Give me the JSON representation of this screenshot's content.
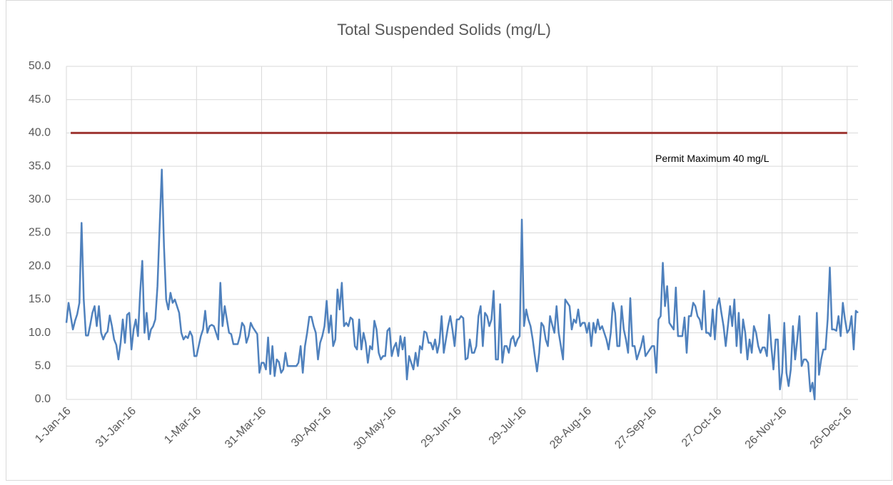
{
  "chart_data": {
    "type": "line",
    "title": "Total Suspended Solids (mg/L)",
    "x": [
      "2016-01-01",
      "2016-01-02",
      "2016-01-03",
      "2016-01-04",
      "2016-01-05",
      "2016-01-06",
      "2016-01-07",
      "2016-01-08",
      "2016-01-09",
      "2016-01-10",
      "2016-01-11",
      "2016-01-12",
      "2016-01-13",
      "2016-01-14",
      "2016-01-15",
      "2016-01-16",
      "2016-01-17",
      "2016-01-18",
      "2016-01-19",
      "2016-01-20",
      "2016-01-21",
      "2016-01-22",
      "2016-01-23",
      "2016-01-24",
      "2016-01-25",
      "2016-01-26",
      "2016-01-27",
      "2016-01-28",
      "2016-01-29",
      "2016-01-30",
      "2016-01-31",
      "2016-02-01",
      "2016-02-02",
      "2016-02-03",
      "2016-02-04",
      "2016-02-05",
      "2016-02-06",
      "2016-02-07",
      "2016-02-08",
      "2016-02-09",
      "2016-02-10",
      "2016-02-11",
      "2016-02-12",
      "2016-02-13",
      "2016-02-14",
      "2016-02-15",
      "2016-02-16",
      "2016-02-17",
      "2016-02-18",
      "2016-02-19",
      "2016-02-20",
      "2016-02-21",
      "2016-02-22",
      "2016-02-23",
      "2016-02-24",
      "2016-02-25",
      "2016-02-26",
      "2016-02-27",
      "2016-02-28",
      "2016-02-29",
      "2016-03-01",
      "2016-03-02",
      "2016-03-03",
      "2016-03-04",
      "2016-03-05",
      "2016-03-06",
      "2016-03-07",
      "2016-03-08",
      "2016-03-09",
      "2016-03-10",
      "2016-03-11",
      "2016-03-12",
      "2016-03-13",
      "2016-03-14",
      "2016-03-15",
      "2016-03-16",
      "2016-03-17",
      "2016-03-18",
      "2016-03-19",
      "2016-03-20",
      "2016-03-21",
      "2016-03-22",
      "2016-03-23",
      "2016-03-24",
      "2016-03-25",
      "2016-03-26",
      "2016-03-27",
      "2016-03-28",
      "2016-03-29",
      "2016-03-30",
      "2016-03-31",
      "2016-04-01",
      "2016-04-02",
      "2016-04-03",
      "2016-04-04",
      "2016-04-05",
      "2016-04-06",
      "2016-04-07",
      "2016-04-08",
      "2016-04-09",
      "2016-04-10",
      "2016-04-11",
      "2016-04-12",
      "2016-04-13",
      "2016-04-14",
      "2016-04-15",
      "2016-04-16",
      "2016-04-17",
      "2016-04-18",
      "2016-04-19",
      "2016-04-20",
      "2016-04-21",
      "2016-04-22",
      "2016-04-23",
      "2016-04-24",
      "2016-04-25",
      "2016-04-26",
      "2016-04-27",
      "2016-04-28",
      "2016-04-29",
      "2016-04-30",
      "2016-05-01",
      "2016-05-02",
      "2016-05-03",
      "2016-05-04",
      "2016-05-05",
      "2016-05-06",
      "2016-05-07",
      "2016-05-08",
      "2016-05-09",
      "2016-05-10",
      "2016-05-11",
      "2016-05-12",
      "2016-05-13",
      "2016-05-14",
      "2016-05-15",
      "2016-05-16",
      "2016-05-17",
      "2016-05-18",
      "2016-05-19",
      "2016-05-20",
      "2016-05-21",
      "2016-05-22",
      "2016-05-23",
      "2016-05-24",
      "2016-05-25",
      "2016-05-26",
      "2016-05-27",
      "2016-05-28",
      "2016-05-29",
      "2016-05-30",
      "2016-05-31",
      "2016-06-01",
      "2016-06-02",
      "2016-06-03",
      "2016-06-04",
      "2016-06-05",
      "2016-06-06",
      "2016-06-07",
      "2016-06-08",
      "2016-06-09",
      "2016-06-10",
      "2016-06-11",
      "2016-06-12",
      "2016-06-13",
      "2016-06-14",
      "2016-06-15",
      "2016-06-16",
      "2016-06-17",
      "2016-06-18",
      "2016-06-19",
      "2016-06-20",
      "2016-06-21",
      "2016-06-22",
      "2016-06-23",
      "2016-06-24",
      "2016-06-25",
      "2016-06-26",
      "2016-06-27",
      "2016-06-28",
      "2016-06-29",
      "2016-06-30",
      "2016-07-01",
      "2016-07-02",
      "2016-07-03",
      "2016-07-04",
      "2016-07-05",
      "2016-07-06",
      "2016-07-07",
      "2016-07-08",
      "2016-07-09",
      "2016-07-10",
      "2016-07-11",
      "2016-07-12",
      "2016-07-13",
      "2016-07-14",
      "2016-07-15",
      "2016-07-16",
      "2016-07-17",
      "2016-07-18",
      "2016-07-19",
      "2016-07-20",
      "2016-07-21",
      "2016-07-22",
      "2016-07-23",
      "2016-07-24",
      "2016-07-25",
      "2016-07-26",
      "2016-07-27",
      "2016-07-28",
      "2016-07-29",
      "2016-07-30",
      "2016-07-31",
      "2016-08-01",
      "2016-08-02",
      "2016-08-03",
      "2016-08-04",
      "2016-08-05",
      "2016-08-06",
      "2016-08-07",
      "2016-08-08",
      "2016-08-09",
      "2016-08-10",
      "2016-08-11",
      "2016-08-12",
      "2016-08-13",
      "2016-08-14",
      "2016-08-15",
      "2016-08-16",
      "2016-08-17",
      "2016-08-18",
      "2016-08-19",
      "2016-08-20",
      "2016-08-21",
      "2016-08-22",
      "2016-08-23",
      "2016-08-24",
      "2016-08-25",
      "2016-08-26",
      "2016-08-27",
      "2016-08-28",
      "2016-08-29",
      "2016-08-30",
      "2016-08-31",
      "2016-09-01",
      "2016-09-02",
      "2016-09-03",
      "2016-09-04",
      "2016-09-05",
      "2016-09-06",
      "2016-09-07",
      "2016-09-08",
      "2016-09-09",
      "2016-09-10",
      "2016-09-11",
      "2016-09-12",
      "2016-09-13",
      "2016-09-14",
      "2016-09-15",
      "2016-09-16",
      "2016-09-17",
      "2016-09-18",
      "2016-09-19",
      "2016-09-20",
      "2016-09-21",
      "2016-09-22",
      "2016-09-23",
      "2016-09-24",
      "2016-09-25",
      "2016-09-26",
      "2016-09-27",
      "2016-09-28",
      "2016-09-29",
      "2016-09-30",
      "2016-10-01",
      "2016-10-02",
      "2016-10-03",
      "2016-10-04",
      "2016-10-05",
      "2016-10-06",
      "2016-10-07",
      "2016-10-08",
      "2016-10-09",
      "2016-10-10",
      "2016-10-11",
      "2016-10-12",
      "2016-10-13",
      "2016-10-14",
      "2016-10-15",
      "2016-10-16",
      "2016-10-17",
      "2016-10-18",
      "2016-10-19",
      "2016-10-20",
      "2016-10-21",
      "2016-10-22",
      "2016-10-23",
      "2016-10-24",
      "2016-10-25",
      "2016-10-26",
      "2016-10-27",
      "2016-10-28",
      "2016-10-29",
      "2016-10-30",
      "2016-10-31",
      "2016-11-01",
      "2016-11-02",
      "2016-11-03",
      "2016-11-04",
      "2016-11-05",
      "2016-11-06",
      "2016-11-07",
      "2016-11-08",
      "2016-11-09",
      "2016-11-10",
      "2016-11-11",
      "2016-11-12",
      "2016-11-13",
      "2016-11-14",
      "2016-11-15",
      "2016-11-16",
      "2016-11-17",
      "2016-11-18",
      "2016-11-19",
      "2016-11-20",
      "2016-11-21",
      "2016-11-22",
      "2016-11-23",
      "2016-11-24",
      "2016-11-25",
      "2016-11-26",
      "2016-11-27",
      "2016-11-28",
      "2016-11-29",
      "2016-11-30",
      "2016-12-01",
      "2016-12-02",
      "2016-12-03",
      "2016-12-04",
      "2016-12-05",
      "2016-12-06",
      "2016-12-07",
      "2016-12-08",
      "2016-12-09",
      "2016-12-10",
      "2016-12-11",
      "2016-12-12",
      "2016-12-13",
      "2016-12-14",
      "2016-12-15",
      "2016-12-16",
      "2016-12-17",
      "2016-12-18",
      "2016-12-19",
      "2016-12-20",
      "2016-12-21",
      "2016-12-22",
      "2016-12-23",
      "2016-12-24",
      "2016-12-25",
      "2016-12-26",
      "2016-12-27",
      "2016-12-28",
      "2016-12-29",
      "2016-12-30",
      "2016-12-31"
    ],
    "series": [
      {
        "color": "#4f81bd",
        "values": [
          11.5,
          14.5,
          12.5,
          10.5,
          11.8,
          12.8,
          14.5,
          26.5,
          15,
          9.6,
          9.6,
          11.2,
          13,
          14,
          11,
          14,
          10,
          9,
          9.8,
          10.2,
          12.6,
          11,
          9,
          8.2,
          6,
          8.5,
          12,
          8.5,
          12.7,
          13,
          7.5,
          10.5,
          12,
          9.5,
          16,
          20.8,
          10,
          13,
          9,
          10.5,
          11,
          12,
          17,
          26,
          34.5,
          23,
          15,
          13.5,
          16,
          14.5,
          15,
          14,
          13,
          10,
          9,
          9.5,
          9.2,
          10.2,
          9.5,
          6.5,
          6.5,
          8,
          9.5,
          10.5,
          13.3,
          10,
          11,
          11.2,
          11,
          10,
          9,
          17.5,
          11,
          14,
          12,
          10,
          9.8,
          8.3,
          8.3,
          8.3,
          9.5,
          11.5,
          11,
          8.5,
          9.5,
          11.5,
          10.8,
          10.3,
          9.8,
          4,
          5.5,
          5.5,
          4.5,
          9.3,
          3.8,
          8,
          3.5,
          6,
          5.6,
          4,
          4.5,
          7,
          5,
          5,
          5,
          5,
          5,
          5.5,
          8,
          4,
          8,
          10,
          12.4,
          12.4,
          11,
          10,
          6,
          8.5,
          9.5,
          11,
          14.8,
          10,
          12.6,
          8,
          9,
          16.5,
          13.5,
          17.5,
          11,
          11.5,
          11,
          12.3,
          12,
          8,
          7.5,
          12,
          7.5,
          10,
          8.5,
          5.5,
          8,
          7.5,
          11.8,
          10.5,
          7,
          6,
          6.5,
          6.5,
          10.3,
          10.7,
          6.5,
          7.8,
          8.5,
          6.5,
          9.5,
          7.5,
          9.3,
          3,
          6.5,
          5.5,
          4.5,
          7,
          5,
          8,
          7.5,
          10.2,
          10,
          8.5,
          8.5,
          7.5,
          9,
          7,
          8.5,
          12.5,
          7,
          9,
          11,
          12.5,
          10.5,
          8,
          12,
          12,
          12.5,
          12.2,
          6,
          6.2,
          9,
          7,
          7,
          8,
          12.5,
          14,
          8,
          13,
          12.5,
          11,
          12,
          16.3,
          6,
          6,
          14.3,
          5.5,
          8,
          8,
          7,
          9,
          9.5,
          8,
          9,
          9.5,
          27,
          11,
          13.5,
          12,
          11,
          9,
          6.5,
          4.2,
          7,
          11.5,
          11,
          9,
          8,
          12.5,
          11.2,
          10,
          14,
          10,
          8,
          6,
          15,
          14.5,
          14,
          10.5,
          12,
          11.5,
          13.5,
          11,
          11.5,
          11.5,
          10,
          11.5,
          8,
          11.5,
          10,
          12,
          10.5,
          11,
          10,
          9,
          7.5,
          10,
          14.5,
          13,
          8,
          8,
          14,
          10.5,
          9,
          7,
          15.2,
          8,
          8,
          6,
          7,
          8,
          9.5,
          6.5,
          7,
          7.5,
          8,
          8,
          4,
          12,
          12.5,
          20.5,
          14,
          17,
          11.5,
          11,
          10.5,
          16.8,
          9.5,
          9.5,
          9.5,
          12.3,
          7,
          12.5,
          12.5,
          14.5,
          14,
          12.5,
          12,
          10.5,
          16.3,
          10,
          10,
          9.5,
          13.5,
          9,
          14,
          15.2,
          13,
          11,
          8,
          11,
          14,
          11,
          15,
          8,
          13,
          7,
          12,
          10,
          6,
          9,
          7,
          11,
          10,
          8,
          7,
          7.8,
          7.8,
          6.5,
          12.7,
          8,
          4.5,
          9,
          9,
          1.5,
          4,
          11.5,
          4,
          2,
          4.5,
          11,
          6,
          9,
          12.5,
          5,
          6,
          6,
          5.5,
          1.2,
          2.5,
          0,
          13,
          3.7,
          6,
          7.5,
          7.5,
          12,
          19.8,
          10.5,
          10.5,
          10.3,
          12.5,
          9.5,
          14.5,
          12,
          10,
          10.5,
          12.5,
          7.5,
          13.3,
          13
        ]
      }
    ],
    "reference_line": {
      "value": 40,
      "label": "Permit Maximum 40 mg/L",
      "color": "#9e3632",
      "x": [
        "2016-01-03",
        "2016-12-26"
      ]
    },
    "xlim": [
      "2016-01-01",
      "2016-12-31"
    ],
    "xticks": [
      {
        "value": "2016-01-01",
        "label": "1-Jan-16"
      },
      {
        "value": "2016-01-31",
        "label": "31-Jan-16"
      },
      {
        "value": "2016-03-01",
        "label": "1-Mar-16"
      },
      {
        "value": "2016-03-31",
        "label": "31-Mar-16"
      },
      {
        "value": "2016-04-30",
        "label": "30-Apr-16"
      },
      {
        "value": "2016-05-30",
        "label": "30-May-16"
      },
      {
        "value": "2016-06-29",
        "label": "29-Jun-16"
      },
      {
        "value": "2016-07-29",
        "label": "29-Jul-16"
      },
      {
        "value": "2016-08-28",
        "label": "28-Aug-16"
      },
      {
        "value": "2016-09-27",
        "label": "27-Sep-16"
      },
      {
        "value": "2016-10-27",
        "label": "27-Oct-16"
      },
      {
        "value": "2016-11-26",
        "label": "26-Nov-16"
      },
      {
        "value": "2016-12-26",
        "label": "26-Dec-16"
      }
    ],
    "ylim": [
      0,
      50
    ],
    "yticks": [
      {
        "value": 0,
        "label": "0.0"
      },
      {
        "value": 5,
        "label": "5.0"
      },
      {
        "value": 10,
        "label": "10.0"
      },
      {
        "value": 15,
        "label": "15.0"
      },
      {
        "value": 20,
        "label": "20.0"
      },
      {
        "value": 25,
        "label": "25.0"
      },
      {
        "value": 30,
        "label": "30.0"
      },
      {
        "value": 35,
        "label": "35.0"
      },
      {
        "value": 40,
        "label": "40.0"
      },
      {
        "value": 45,
        "label": "45.0"
      },
      {
        "value": 50,
        "label": "50.0"
      }
    ],
    "grid": true
  }
}
